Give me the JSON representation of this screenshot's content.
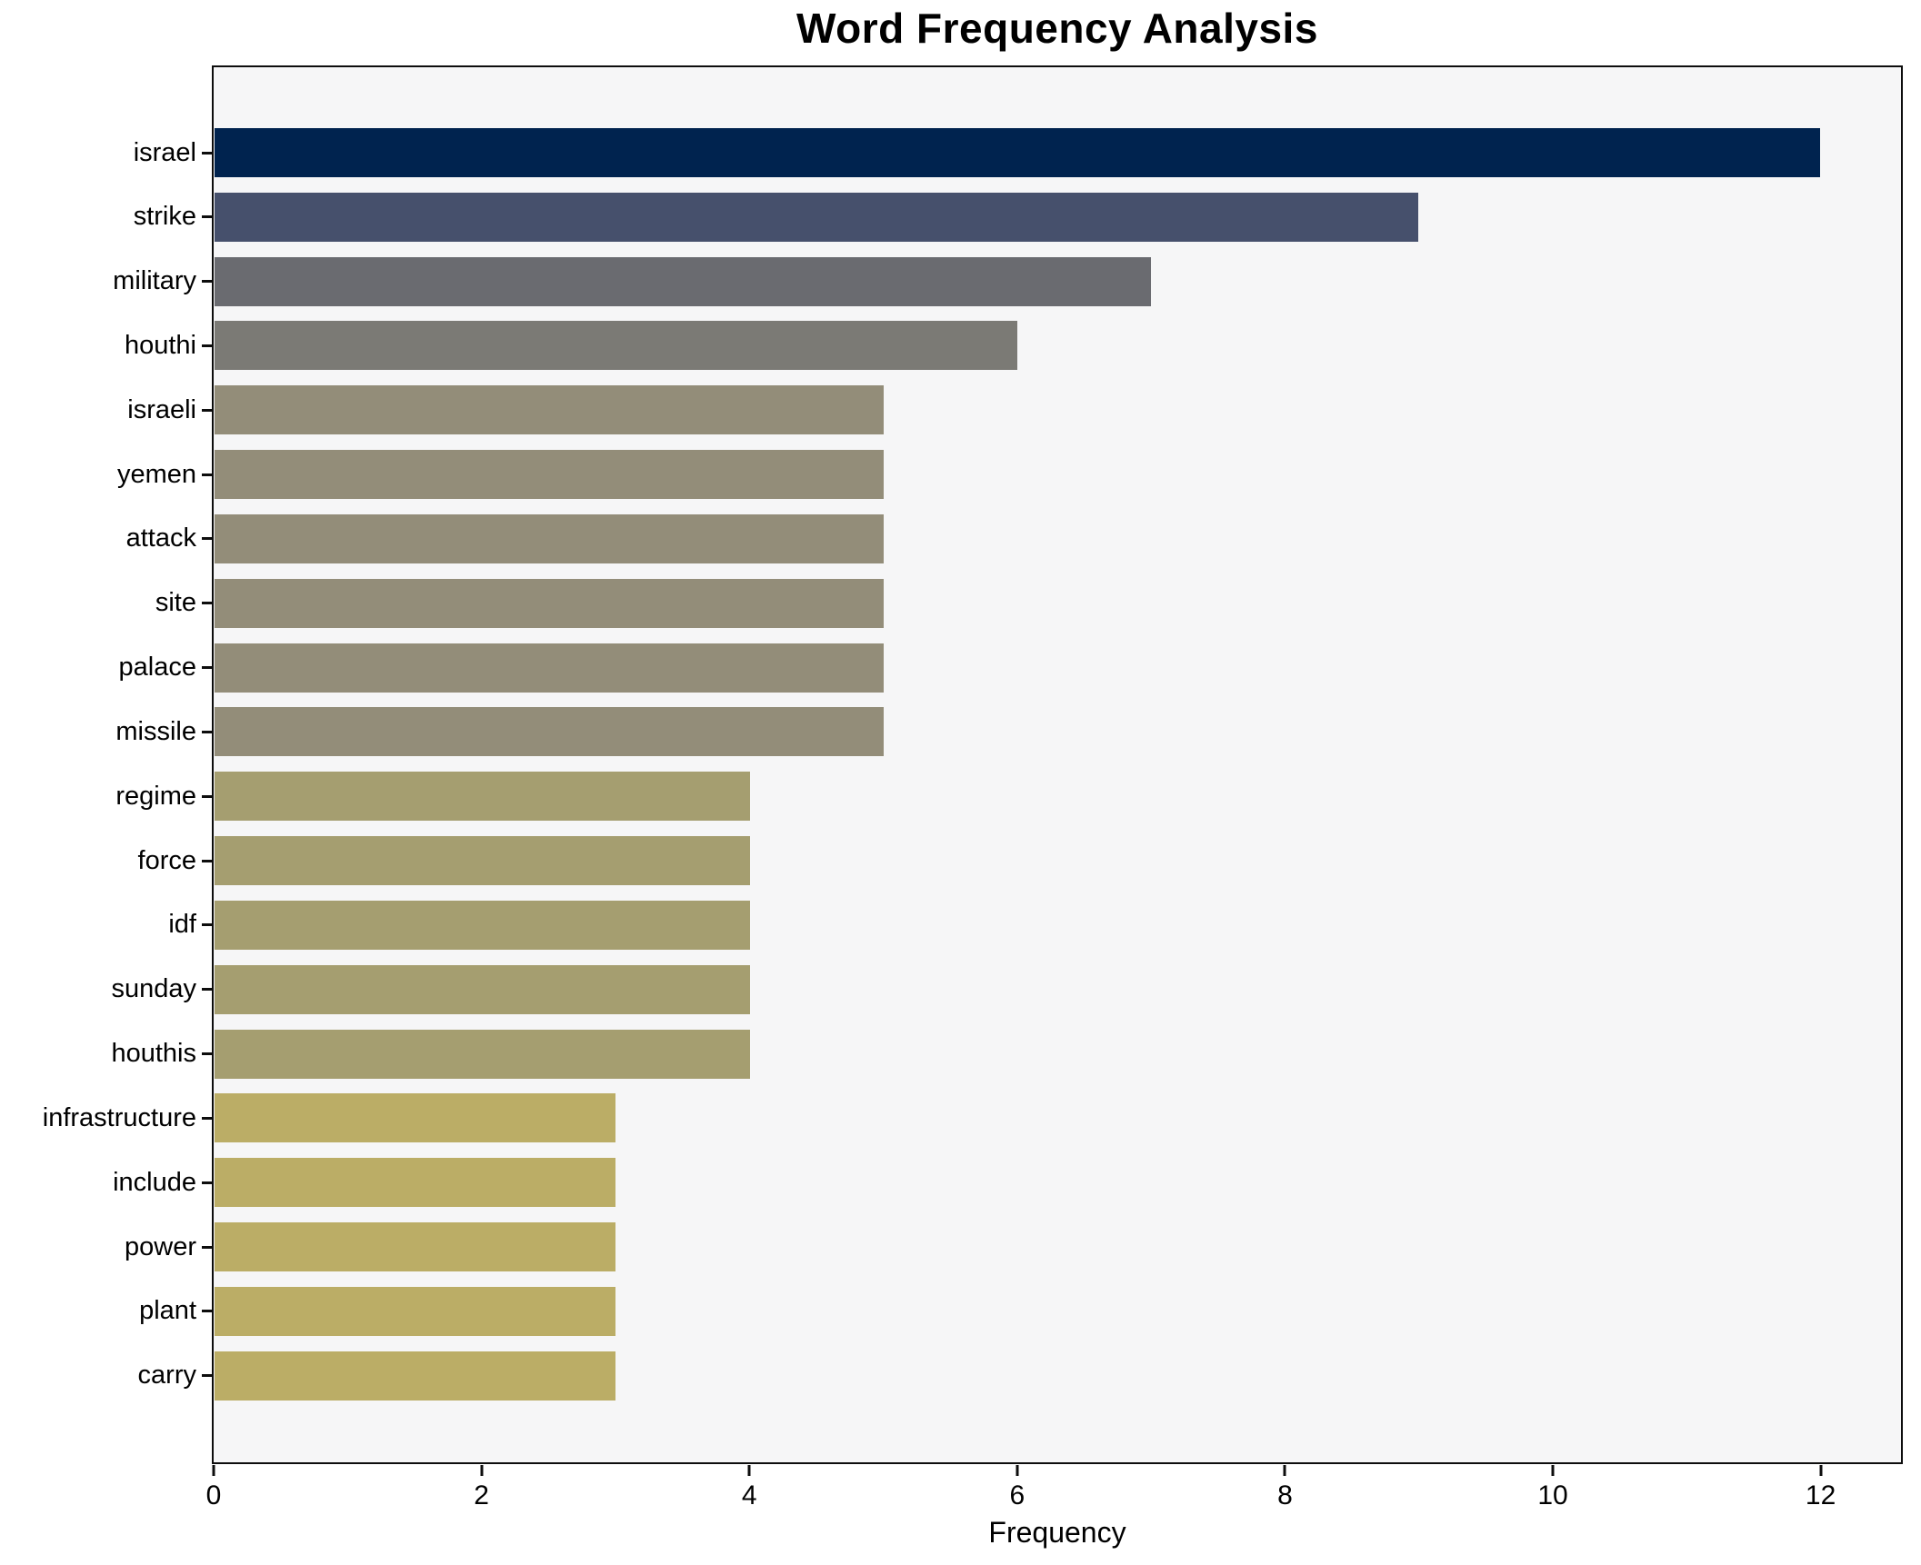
{
  "title": "Word Frequency Analysis",
  "x_axis": {
    "label": "Frequency",
    "ticks": [
      0,
      2,
      4,
      6,
      8,
      10,
      12
    ],
    "max": 12.6
  },
  "colors": {
    "figure_bg": "#ffffff",
    "plot_bg": "#f6f6f7",
    "axis": "#0d0d0d",
    "text": "#000000"
  },
  "chart_data": {
    "type": "bar",
    "orientation": "horizontal",
    "title": "Word Frequency Analysis",
    "xlabel": "Frequency",
    "ylabel": "",
    "xlim": [
      0,
      12.6
    ],
    "grid": false,
    "legend": false,
    "colormap": "cividis",
    "categories": [
      "israel",
      "strike",
      "military",
      "houthi",
      "israeli",
      "yemen",
      "attack",
      "site",
      "palace",
      "missile",
      "regime",
      "force",
      "idf",
      "sunday",
      "houthis",
      "infrastructure",
      "include",
      "power",
      "plant",
      "carry"
    ],
    "values": [
      12,
      9,
      7,
      6,
      5,
      5,
      5,
      5,
      5,
      5,
      4,
      4,
      4,
      4,
      4,
      3,
      3,
      3,
      3,
      3
    ],
    "bar_colors": [
      "#00234F",
      "#46506C",
      "#6A6B70",
      "#7B7A75",
      "#938D79",
      "#938D79",
      "#938D79",
      "#938D79",
      "#938D79",
      "#938D79",
      "#A59E70",
      "#A59E70",
      "#A59E70",
      "#A59E70",
      "#A59E70",
      "#BBAD66",
      "#BBAD66",
      "#BBAD66",
      "#BBAD66",
      "#BBAD66"
    ]
  }
}
